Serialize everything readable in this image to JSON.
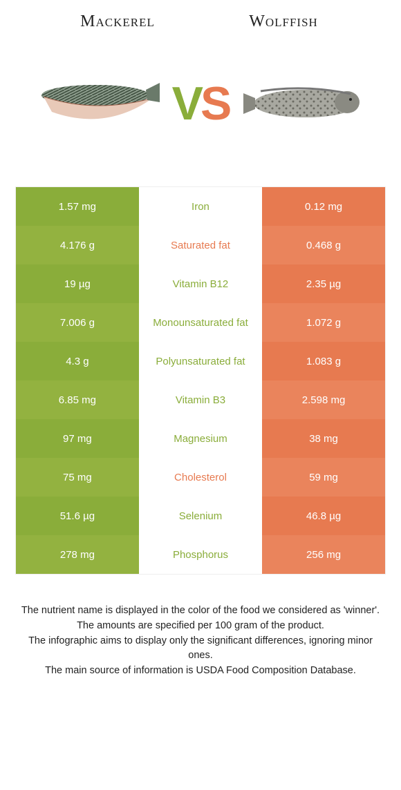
{
  "header": {
    "left": "Mackerel",
    "right": "Wolffish",
    "vs_v": "V",
    "vs_s": "S"
  },
  "colors": {
    "green": "#8aad3a",
    "green_alt": "#93b240",
    "orange": "#e77a50",
    "orange_alt": "#ea845c",
    "mid_bg": "#ffffff",
    "text_green": "#8aad3a",
    "text_orange": "#e77a50"
  },
  "table": {
    "rows": [
      {
        "left": "1.57 mg",
        "mid": "Iron",
        "right": "0.12 mg",
        "winner": "left"
      },
      {
        "left": "4.176 g",
        "mid": "Saturated fat",
        "right": "0.468 g",
        "winner": "right"
      },
      {
        "left": "19 µg",
        "mid": "Vitamin B12",
        "right": "2.35 µg",
        "winner": "left"
      },
      {
        "left": "7.006 g",
        "mid": "Monounsaturated fat",
        "right": "1.072 g",
        "winner": "left"
      },
      {
        "left": "4.3 g",
        "mid": "Polyunsaturated fat",
        "right": "1.083 g",
        "winner": "left"
      },
      {
        "left": "6.85 mg",
        "mid": "Vitamin B3",
        "right": "2.598 mg",
        "winner": "left"
      },
      {
        "left": "97 mg",
        "mid": "Magnesium",
        "right": "38 mg",
        "winner": "left"
      },
      {
        "left": "75 mg",
        "mid": "Cholesterol",
        "right": "59 mg",
        "winner": "right"
      },
      {
        "left": "51.6 µg",
        "mid": "Selenium",
        "right": "46.8 µg",
        "winner": "left"
      },
      {
        "left": "278 mg",
        "mid": "Phosphorus",
        "right": "256 mg",
        "winner": "left"
      }
    ]
  },
  "footer": {
    "line1": "The nutrient name is displayed in the color of the food we considered as 'winner'.",
    "line2": "The amounts are specified per 100 gram of the product.",
    "line3": "The infographic aims to display only the significant differences, ignoring minor ones.",
    "line4": "The main source of information is USDA Food Composition Database."
  }
}
